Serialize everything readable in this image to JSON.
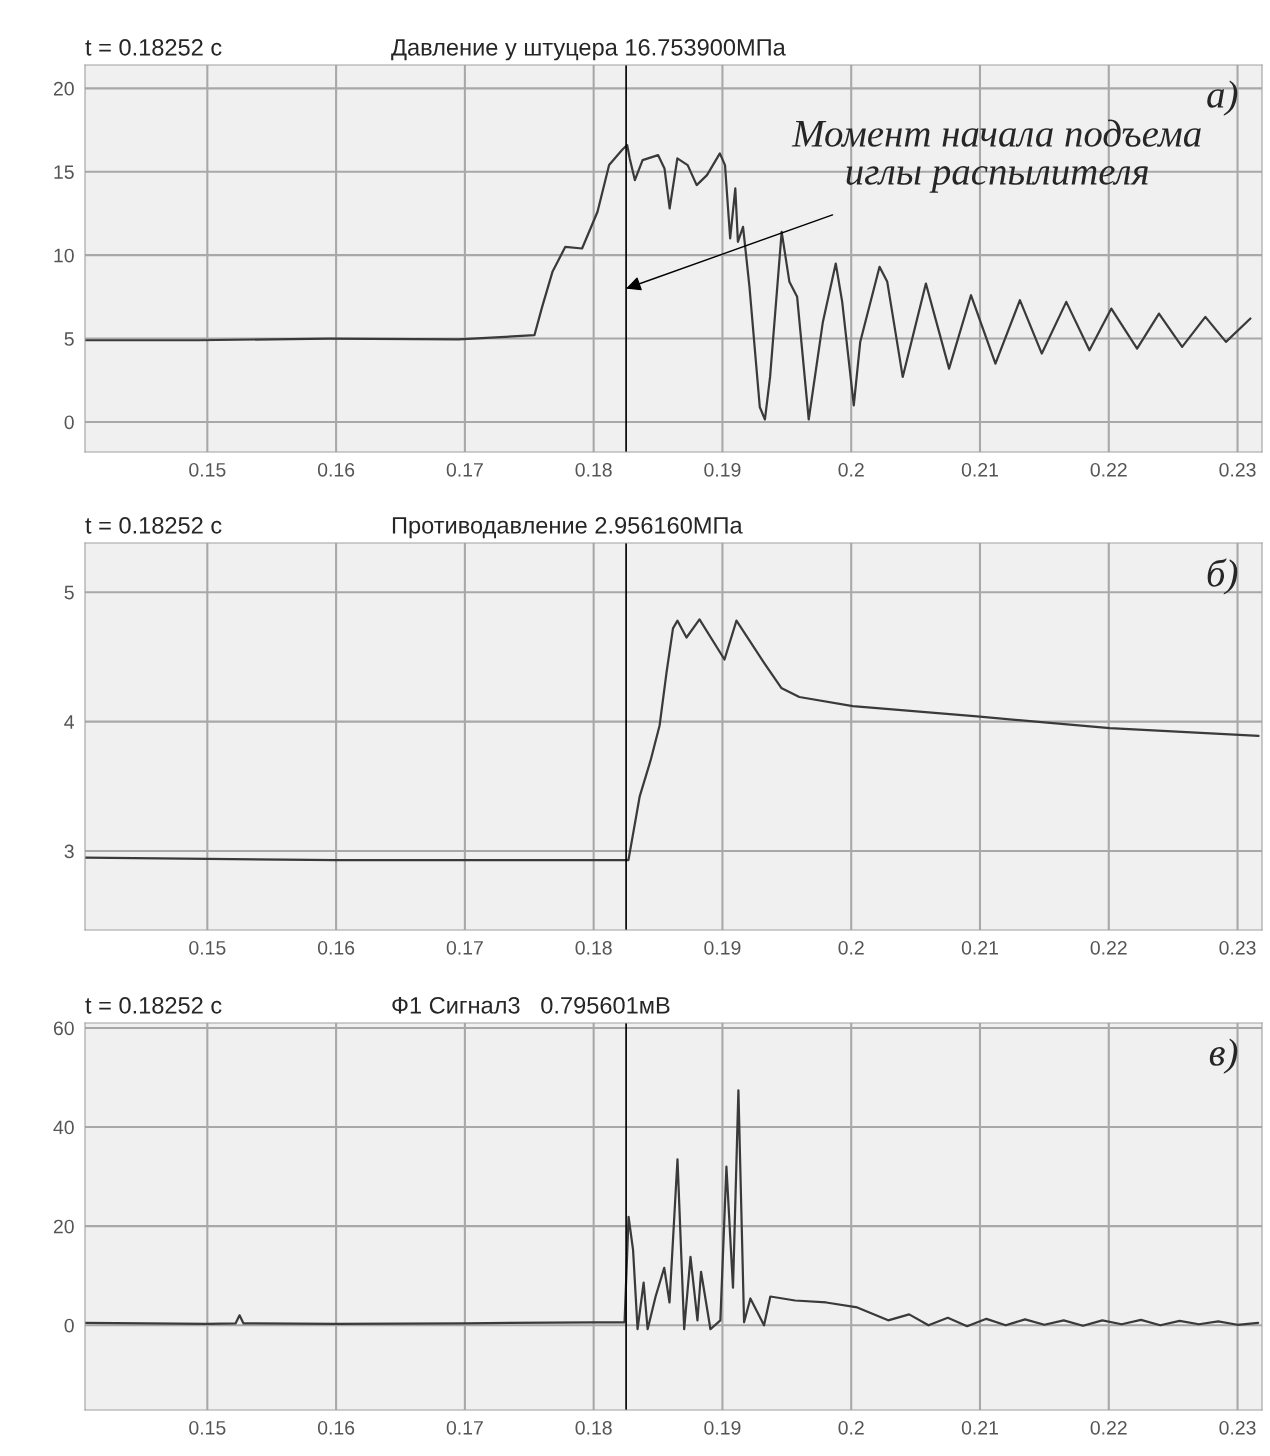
{
  "chart_data": [
    {
      "type": "line",
      "subtitle": "t = 0.18252 c",
      "title": "Давление у штуцера 16.753900МПа",
      "x": [
        0.1405,
        0.1493,
        0.1594,
        0.1695,
        0.1754,
        0.176,
        0.1768,
        0.1778,
        0.1791,
        0.1803,
        0.1812,
        0.1822,
        0.1826,
        0.1828,
        0.1832,
        0.1838,
        0.185,
        0.1855,
        0.1859,
        0.1865,
        0.1873,
        0.188,
        0.1888,
        0.1898,
        0.1902,
        0.1906,
        0.191,
        0.1912,
        0.1916,
        0.1921,
        0.1929,
        0.1933,
        0.1937,
        0.1946,
        0.1952,
        0.1958,
        0.1967,
        0.1978,
        0.1988,
        0.1993,
        0.2002,
        0.2007,
        0.2022,
        0.2028,
        0.204,
        0.2058,
        0.2076,
        0.2093,
        0.2112,
        0.2131,
        0.2148,
        0.2167,
        0.2185,
        0.2202,
        0.2222,
        0.2239,
        0.2257,
        0.2275,
        0.2291,
        0.231
      ],
      "series": [
        {
          "color": "#3a3a3a",
          "values": [
            4.9,
            4.9,
            5.0,
            4.95,
            5.2,
            6.9,
            9.0,
            10.5,
            10.4,
            12.6,
            15.4,
            16.3,
            16.6,
            15.8,
            14.5,
            15.7,
            16.0,
            15.2,
            12.8,
            15.8,
            15.4,
            14.2,
            14.8,
            16.1,
            15.4,
            11.0,
            14.0,
            10.8,
            11.7,
            8.1,
            0.9,
            0.15,
            2.7,
            11.4,
            8.4,
            7.5,
            0.15,
            6.0,
            9.5,
            7.2,
            1.0,
            4.8,
            9.3,
            8.4,
            2.7,
            8.3,
            3.2,
            7.6,
            3.5,
            7.3,
            4.1,
            7.2,
            4.3,
            6.8,
            4.4,
            6.5,
            4.5,
            6.3,
            4.8,
            6.2
          ]
        }
      ],
      "xlim": [
        0.1405,
        0.2319
      ],
      "ylim": [
        -1.8,
        21.4
      ],
      "xticks": [
        0.15,
        0.16,
        0.17,
        0.18,
        0.19,
        0.2,
        0.21,
        0.22,
        0.23
      ],
      "yticks": [
        0,
        5,
        10,
        15,
        20
      ],
      "grid": true,
      "ref_lines": [
        {
          "axis": "x",
          "value": 0.18252,
          "color": "#000000"
        }
      ],
      "annotations": [
        "а)",
        {
          "text": "Момент начала подъема\nиглы распылителя",
          "x": 0.18252,
          "y": 8.0
        }
      ]
    },
    {
      "type": "line",
      "subtitle": "t = 0.18252 c",
      "title": "Противодавление 2.956160МПа",
      "x": [
        0.1405,
        0.15,
        0.16,
        0.17,
        0.175,
        0.1827,
        0.18357,
        0.18442,
        0.18512,
        0.18566,
        0.18616,
        0.18651,
        0.18721,
        0.18822,
        0.19016,
        0.19109,
        0.19326,
        0.19457,
        0.19597,
        0.20012,
        0.20977,
        0.22008,
        0.23163
      ],
      "series": [
        {
          "color": "#3a3a3a",
          "values": [
            2.95,
            2.94,
            2.93,
            2.93,
            2.93,
            2.93,
            3.42,
            3.7,
            3.97,
            4.38,
            4.72,
            4.78,
            4.65,
            4.79,
            4.48,
            4.78,
            4.45,
            4.26,
            4.19,
            4.12,
            4.04,
            3.95,
            3.89
          ]
        }
      ],
      "xlim": [
        0.1405,
        0.2319
      ],
      "ylim": [
        2.39,
        5.38
      ],
      "xticks": [
        0.15,
        0.16,
        0.17,
        0.18,
        0.19,
        0.2,
        0.21,
        0.22,
        0.23
      ],
      "yticks": [
        3,
        4,
        5
      ],
      "grid": true,
      "ref_lines": [
        {
          "axis": "x",
          "value": 0.18252,
          "color": "#000000"
        }
      ],
      "annotations": [
        "б)"
      ]
    },
    {
      "type": "line",
      "subtitle": "t = 0.18252 c",
      "title": "Ф1 Сигнал3   0.795601мВ",
      "x": [
        0.1405,
        0.15,
        0.1522,
        0.1525,
        0.1528,
        0.16,
        0.17,
        0.18,
        0.1824,
        0.18271,
        0.18306,
        0.18341,
        0.18388,
        0.18419,
        0.18481,
        0.18548,
        0.18589,
        0.18651,
        0.18703,
        0.18752,
        0.18806,
        0.18834,
        0.18907,
        0.18984,
        0.19031,
        0.19082,
        0.19124,
        0.19168,
        0.19217,
        0.19323,
        0.19372,
        0.19564,
        0.19806,
        0.20047,
        0.20287,
        0.2045,
        0.206,
        0.2075,
        0.209,
        0.2105,
        0.212,
        0.2135,
        0.215,
        0.2165,
        0.218,
        0.2195,
        0.221,
        0.2225,
        0.224,
        0.2255,
        0.227,
        0.2285,
        0.23,
        0.2316
      ],
      "series": [
        {
          "color": "#3a3a3a",
          "values": [
            0.5,
            0.3,
            0.4,
            2.0,
            0.4,
            0.3,
            0.4,
            0.6,
            0.6,
            21.9,
            15.2,
            -0.8,
            8.6,
            -0.8,
            5.8,
            11.6,
            4.6,
            33.5,
            -0.8,
            13.8,
            1.0,
            10.8,
            -0.8,
            1.0,
            32.0,
            7.6,
            47.4,
            0.6,
            5.4,
            0.0,
            5.8,
            5.0,
            4.6,
            3.6,
            1.0,
            2.2,
            0.0,
            1.5,
            -0.2,
            1.3,
            0.0,
            1.2,
            0.1,
            1.0,
            -0.1,
            1.0,
            0.2,
            1.1,
            0.0,
            0.9,
            0.2,
            0.8,
            0.1,
            0.5
          ]
        }
      ],
      "xlim": [
        0.1405,
        0.2319
      ],
      "ylim": [
        -17.1,
        61
      ],
      "xticks": [
        0.15,
        0.16,
        0.17,
        0.18,
        0.19,
        0.2,
        0.21,
        0.22,
        0.23
      ],
      "yticks": [
        0,
        20,
        40,
        60
      ],
      "grid": true,
      "ref_lines": [
        {
          "axis": "x",
          "value": 0.18252,
          "color": "#000000"
        }
      ],
      "annotations": [
        "в)"
      ]
    }
  ]
}
